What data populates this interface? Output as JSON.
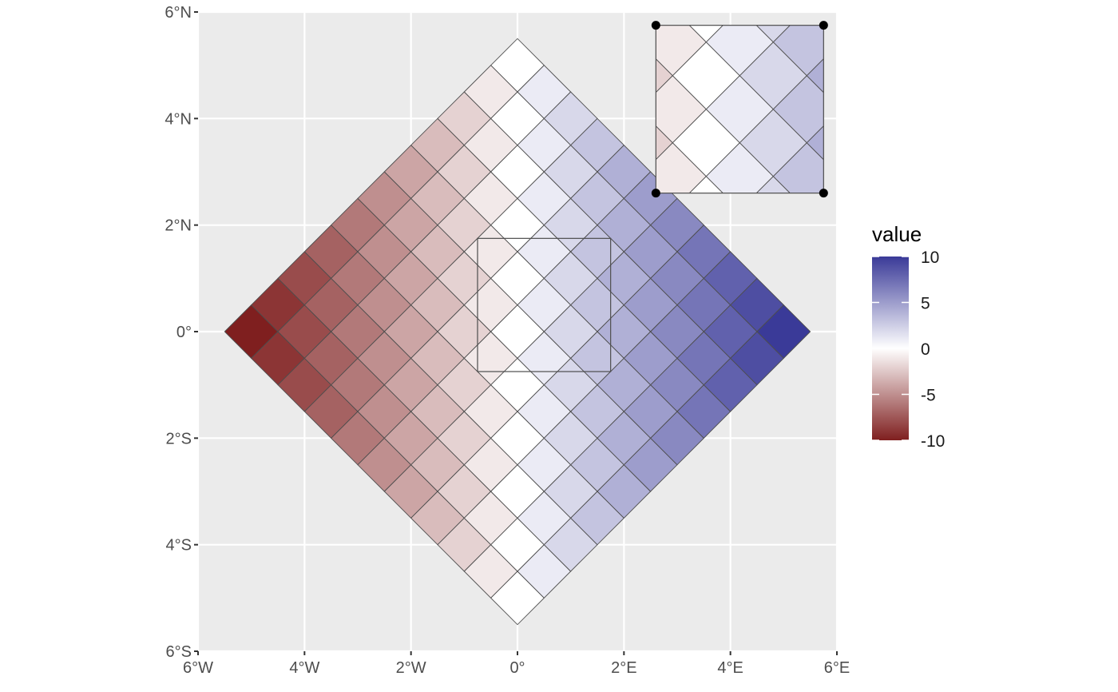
{
  "chart_data": {
    "type": "heatmap",
    "title": "",
    "xlabel": "",
    "ylabel": "",
    "xlim": [
      -6,
      6
    ],
    "ylim": [
      -6,
      6
    ],
    "grid": true,
    "x_ticks": [
      {
        "value": -6,
        "label": "6°W"
      },
      {
        "value": -4,
        "label": "4°W"
      },
      {
        "value": -2,
        "label": "2°W"
      },
      {
        "value": 0,
        "label": "0°"
      },
      {
        "value": 2,
        "label": "2°E"
      },
      {
        "value": 4,
        "label": "4°E"
      },
      {
        "value": 6,
        "label": "6°E"
      }
    ],
    "y_ticks": [
      {
        "value": 6,
        "label": "6°N"
      },
      {
        "value": 4,
        "label": "4°N"
      },
      {
        "value": 2,
        "label": "2°N"
      },
      {
        "value": 0,
        "label": "0°"
      },
      {
        "value": -2,
        "label": "2°S"
      },
      {
        "value": -4,
        "label": "4°S"
      },
      {
        "value": -6,
        "label": "6°S"
      }
    ],
    "grid_description": "11 x 11 grid of square cells rotated 45 degrees; cell value = column index + row index - 10",
    "diamond_center": [
      0,
      0
    ],
    "diamond_half_diagonal_deg": 5.5,
    "cell_rows": 11,
    "cell_cols": 11,
    "value_range": [
      -10,
      10
    ],
    "inset": {
      "description": "region cropped by the rectangle near the center, magnified in the upper-right",
      "source_box": {
        "x": [
          -0.75,
          1.75
        ],
        "y": [
          -0.75,
          1.75
        ]
      },
      "target_box": {
        "x": [
          2.6,
          5.75
        ],
        "y": [
          2.6,
          5.75
        ]
      }
    },
    "legend": {
      "title": "value",
      "position": "right",
      "ticks": [
        10,
        5,
        0,
        -5,
        -10
      ],
      "colors": {
        "low": "#7f1f1f",
        "mid": "#ffffff",
        "high": "#3a3a98"
      }
    }
  }
}
